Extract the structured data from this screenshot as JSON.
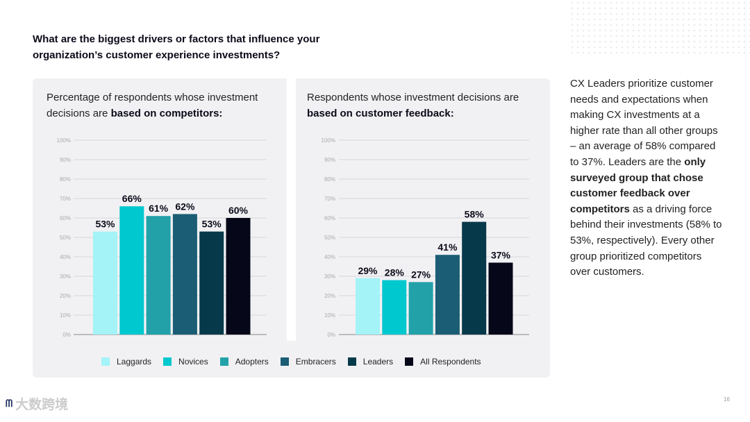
{
  "question": "What are the biggest drivers or factors that influence your organization’s customer experience investments?",
  "panels": [
    {
      "title_plain": "Percentage of respondents whose investment decisions are ",
      "title_bold": "based on competitors:"
    },
    {
      "title_plain": "Respondents whose investment decisions are ",
      "title_bold": "based on customer feedback:"
    }
  ],
  "side_text": {
    "p1": "CX Leaders prioritize customer needs and expectations when making CX investments at a higher rate than all other groups – an average of 58% compared to 37%. Leaders are the ",
    "b1": "only surveyed group that chose customer feedback over competitors",
    "p2": " as a driving force behind their investments (58% to 53%, respectively). Every other group prioritized competitors over customers."
  },
  "page_number": "16",
  "watermark": "大数跨境",
  "colors": [
    "#a3f3f7",
    "#00c8cf",
    "#22a1a8",
    "#1b5d74",
    "#063a4a",
    "#07071a"
  ],
  "chart_data": [
    {
      "type": "bar",
      "title": "Percentage of respondents whose investment decisions are based on competitors",
      "categories": [
        "Laggards",
        "Novices",
        "Adopters",
        "Embracers",
        "Leaders",
        "All Respondents"
      ],
      "values": [
        53,
        66,
        61,
        62,
        53,
        60
      ],
      "ylim": [
        0,
        100
      ],
      "yticks": [
        "0%",
        "10%",
        "20%",
        "30%",
        "40%",
        "50%",
        "60%",
        "70%",
        "80%",
        "90%",
        "100%"
      ],
      "grid": true
    },
    {
      "type": "bar",
      "title": "Respondents whose investment decisions are based on customer feedback",
      "categories": [
        "Laggards",
        "Novices",
        "Adopters",
        "Embracers",
        "Leaders",
        "All Respondents"
      ],
      "values": [
        29,
        28,
        27,
        41,
        58,
        37
      ],
      "ylim": [
        0,
        100
      ],
      "yticks": [
        "0%",
        "10%",
        "20%",
        "30%",
        "40%",
        "50%",
        "60%",
        "70%",
        "80%",
        "90%",
        "100%"
      ],
      "grid": true
    }
  ],
  "legend": {
    "position": "bottom",
    "labels": [
      "Laggards",
      "Novices",
      "Adopters",
      "Embracers",
      "Leaders",
      "All Respondents"
    ]
  }
}
